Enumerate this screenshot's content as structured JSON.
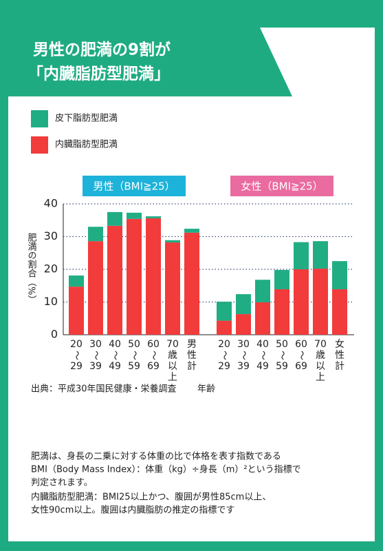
{
  "header": {
    "title_lines": [
      "男性の肥満の9割が",
      "「内臓脂肪型肥満」"
    ]
  },
  "chart_data": {
    "type": "stacked-bar",
    "ylabel": "肥満の割合（%）",
    "xlabel": "年齢",
    "ylim": [
      0,
      40
    ],
    "yticks": [
      0,
      10,
      20,
      30,
      40
    ],
    "grid": true,
    "series": [
      {
        "name": "皮下脂肪型肥満",
        "color": "#20ad84"
      },
      {
        "name": "内臓脂肪型肥満",
        "color": "#f23b3b"
      }
    ],
    "groups": [
      {
        "label": "男性（BMI≧25）",
        "color": "#1db2d9",
        "categories": [
          [
            "20",
            "〜",
            "29"
          ],
          [
            "30",
            "〜",
            "39"
          ],
          [
            "40",
            "〜",
            "49"
          ],
          [
            "50",
            "〜",
            "59"
          ],
          [
            "60",
            "〜",
            "69"
          ],
          [
            "70",
            "歳",
            "以",
            "上"
          ],
          [
            "男",
            "性",
            "計"
          ]
        ],
        "series": [
          {
            "values": [
              3.4,
              4.4,
              4.2,
              1.9,
              0.6,
              0.7,
              1.2
            ]
          },
          {
            "values": [
              14.7,
              28.6,
              33.3,
              35.4,
              35.6,
              28.2,
              31.2
            ]
          }
        ]
      },
      {
        "label": "女性（BMI≧25）",
        "color": "#e96b9f",
        "categories": [
          [
            "20",
            "〜",
            "29"
          ],
          [
            "30",
            "〜",
            "39"
          ],
          [
            "40",
            "〜",
            "49"
          ],
          [
            "50",
            "〜",
            "59"
          ],
          [
            "60",
            "〜",
            "69"
          ],
          [
            "70",
            "歳",
            "以",
            "上"
          ],
          [
            "女",
            "性",
            "計"
          ]
        ],
        "series": [
          {
            "values": [
              5.8,
              6.1,
              6.9,
              5.9,
              8.3,
              8.4,
              8.6
            ]
          },
          {
            "values": [
              4.3,
              6.3,
              9.9,
              13.9,
              20.0,
              20.2,
              13.9
            ]
          }
        ]
      }
    ]
  },
  "notes": {
    "source": "出典：平成30年国民健康・栄養調査",
    "lines": [
      "肥満は、身長の二乗に対する体重の比で体格を表す指数である",
      "BMI（Body Mass Index）：体重（kg）÷身長（m）²という指標で",
      "判定されます。",
      "内臓脂肪型肥満：BMI25以上かつ、腹囲が男性85cm以上、",
      "女性90cm以上。腹囲は内臓脂肪の推定の指標です"
    ]
  }
}
